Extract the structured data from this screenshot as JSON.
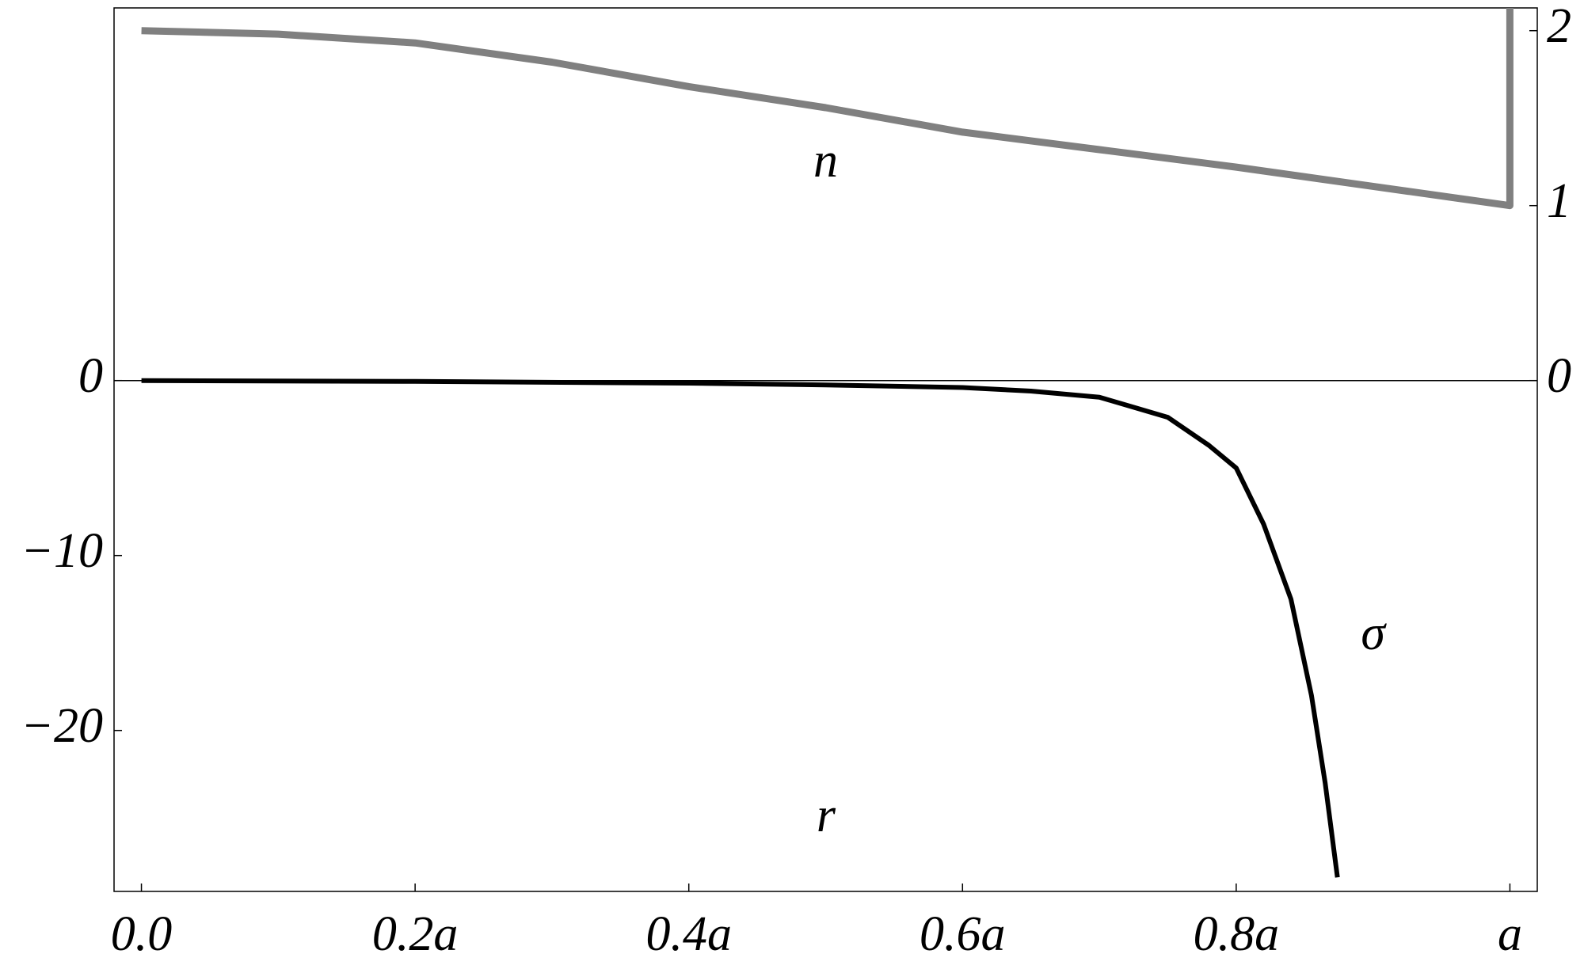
{
  "chart_data": {
    "type": "line",
    "x_label": "r",
    "xlim": [
      -0.02,
      1.02
    ],
    "xticks": [
      {
        "value": 0,
        "label": "0.0"
      },
      {
        "value": 0.2,
        "label": "0.2a"
      },
      {
        "value": 0.4,
        "label": "0.4a"
      },
      {
        "value": 0.6,
        "label": "0.6a"
      },
      {
        "value": 0.8,
        "label": "0.8a"
      },
      {
        "value": 1,
        "label": "a"
      }
    ],
    "ylim": [
      -29.2,
      21.3
    ],
    "yticks": [
      0,
      {
        "value": -10,
        "label": "−10"
      },
      {
        "value": -20,
        "label": "−20"
      }
    ],
    "y2lim": [
      -2.92,
      2.13
    ],
    "y2ticks": [
      0,
      1,
      2
    ],
    "series": [
      {
        "name": "n",
        "color": "#808080",
        "axis": "y2",
        "x": [
          0,
          0.1,
          0.2,
          0.3,
          0.4,
          0.5,
          0.6,
          0.7,
          0.8,
          0.9,
          1,
          1
        ],
        "values": [
          2.0,
          1.98,
          1.93,
          1.82,
          1.68,
          1.56,
          1.42,
          1.32,
          1.22,
          1.11,
          1.0,
          2.13
        ]
      },
      {
        "name": "σ",
        "color": "#000000",
        "axis": "y",
        "x": [
          0,
          0.2,
          0.4,
          0.5,
          0.6,
          0.65,
          0.7,
          0.75,
          0.78,
          0.8,
          0.82,
          0.84,
          0.855,
          0.865,
          0.874
        ],
        "values": [
          0,
          -0.05,
          -0.15,
          -0.25,
          -0.4,
          -0.6,
          -0.95,
          -2.1,
          -3.7,
          -5.0,
          -8.2,
          -12.5,
          -18,
          -23,
          -28.4
        ]
      }
    ]
  }
}
